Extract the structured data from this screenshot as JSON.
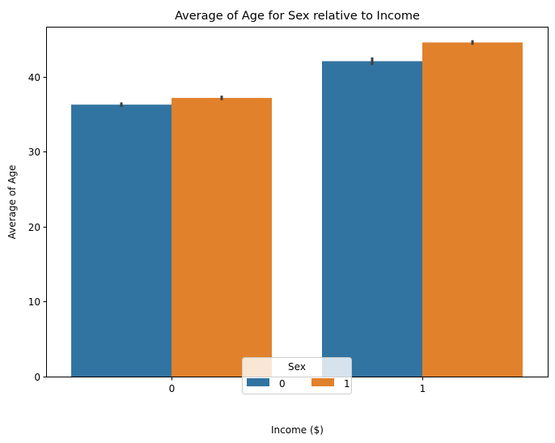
{
  "chart_data": {
    "type": "bar",
    "title": "Average of Age for Sex relative to Income",
    "xlabel": "Income ($)",
    "ylabel": "Average of Age",
    "categories": [
      "0",
      "1"
    ],
    "series": [
      {
        "name": "0",
        "values": [
          36.3,
          42.1
        ],
        "error": [
          0.3,
          0.5
        ],
        "color": "#3274a1"
      },
      {
        "name": "1",
        "values": [
          37.2,
          44.6
        ],
        "error": [
          0.3,
          0.3
        ],
        "color": "#e1812c"
      }
    ],
    "ylim": [
      0,
      46.7
    ],
    "yticks": [
      0,
      10,
      20,
      30,
      40
    ],
    "grid": false,
    "legend": {
      "title": "Sex",
      "placement": "bottom-center",
      "columns": 2
    },
    "errorbar_color": "#3f3f3f"
  }
}
